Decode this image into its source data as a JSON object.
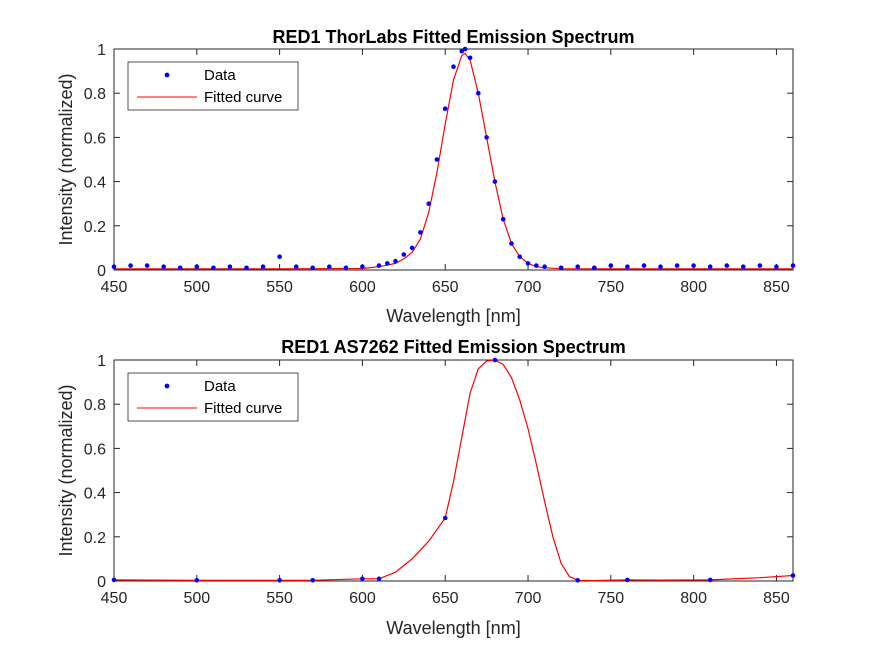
{
  "chart_data": [
    {
      "type": "line",
      "title": "RED1 ThorLabs Fitted Emission Spectrum",
      "xlabel": "Wavelength [nm]",
      "ylabel": "Intensity (normalized)",
      "xlim": [
        450,
        860
      ],
      "ylim": [
        0,
        1
      ],
      "xticks": [
        450,
        500,
        550,
        600,
        650,
        700,
        750,
        800,
        850
      ],
      "yticks": [
        0,
        0.2,
        0.4,
        0.6,
        0.8,
        1
      ],
      "ytick_labels": [
        "0",
        "0.2",
        "0.4",
        "0.6",
        "0.8",
        "1"
      ],
      "grid": false,
      "legend": {
        "position": "top-left",
        "entries": [
          "Data",
          "Fitted curve"
        ]
      },
      "series": [
        {
          "name": "Data",
          "style": "markers",
          "color": "#0000ff",
          "note": "dense measured samples; approximated here by key points read from the plot",
          "x": [
            450,
            460,
            470,
            480,
            490,
            500,
            510,
            520,
            530,
            540,
            550,
            560,
            570,
            580,
            590,
            600,
            610,
            615,
            620,
            625,
            630,
            635,
            640,
            645,
            650,
            655,
            660,
            662,
            665,
            670,
            675,
            680,
            685,
            690,
            695,
            700,
            705,
            710,
            720,
            730,
            740,
            750,
            760,
            770,
            780,
            790,
            800,
            810,
            820,
            830,
            840,
            850,
            860
          ],
          "y": [
            0.015,
            0.02,
            0.02,
            0.015,
            0.01,
            0.015,
            0.01,
            0.015,
            0.01,
            0.015,
            0.06,
            0.015,
            0.01,
            0.015,
            0.01,
            0.015,
            0.02,
            0.03,
            0.04,
            0.07,
            0.1,
            0.17,
            0.3,
            0.5,
            0.73,
            0.92,
            0.99,
            1.0,
            0.96,
            0.8,
            0.6,
            0.4,
            0.23,
            0.12,
            0.06,
            0.03,
            0.02,
            0.015,
            0.01,
            0.015,
            0.01,
            0.02,
            0.015,
            0.02,
            0.015,
            0.02,
            0.02,
            0.015,
            0.02,
            0.015,
            0.02,
            0.015,
            0.02
          ]
        },
        {
          "name": "Fitted curve",
          "style": "line",
          "color": "#ff0000",
          "x": [
            450,
            500,
            550,
            600,
            610,
            620,
            625,
            630,
            635,
            640,
            645,
            650,
            655,
            660,
            662,
            665,
            670,
            675,
            680,
            685,
            690,
            695,
            700,
            705,
            710,
            720,
            750,
            800,
            860
          ],
          "y": [
            0.005,
            0.005,
            0.005,
            0.007,
            0.015,
            0.03,
            0.05,
            0.08,
            0.14,
            0.26,
            0.44,
            0.66,
            0.86,
            0.97,
            0.98,
            0.95,
            0.8,
            0.6,
            0.4,
            0.23,
            0.12,
            0.06,
            0.03,
            0.015,
            0.01,
            0.006,
            0.005,
            0.005,
            0.005
          ]
        }
      ]
    },
    {
      "type": "line",
      "title": "RED1 AS7262 Fitted Emission Spectrum",
      "xlabel": "Wavelength [nm]",
      "ylabel": "Intensity (normalized)",
      "xlim": [
        450,
        860
      ],
      "ylim": [
        0,
        1
      ],
      "xticks": [
        450,
        500,
        550,
        600,
        650,
        700,
        750,
        800,
        850
      ],
      "yticks": [
        0,
        0.2,
        0.4,
        0.6,
        0.8,
        1
      ],
      "ytick_labels": [
        "0",
        "0.2",
        "0.4",
        "0.6",
        "0.8",
        "1"
      ],
      "grid": false,
      "legend": {
        "position": "top-left",
        "entries": [
          "Data",
          "Fitted curve"
        ]
      },
      "series": [
        {
          "name": "Data",
          "style": "markers",
          "color": "#0000ff",
          "x": [
            450,
            500,
            550,
            570,
            600,
            610,
            650,
            680,
            730,
            760,
            810,
            860
          ],
          "y": [
            0.005,
            0.003,
            0.003,
            0.003,
            0.01,
            0.01,
            0.285,
            1.0,
            0.003,
            0.005,
            0.005,
            0.025
          ]
        },
        {
          "name": "Fitted curve",
          "style": "line",
          "color": "#ff0000",
          "x": [
            450,
            500,
            550,
            570,
            600,
            610,
            620,
            630,
            640,
            650,
            655,
            660,
            665,
            670,
            675,
            680,
            685,
            690,
            695,
            700,
            705,
            710,
            715,
            720,
            725,
            730,
            740,
            760,
            780,
            810,
            840,
            860
          ],
          "y": [
            0.005,
            0.003,
            0.003,
            0.003,
            0.01,
            0.01,
            0.04,
            0.1,
            0.18,
            0.285,
            0.45,
            0.65,
            0.85,
            0.96,
            0.995,
            1.0,
            0.98,
            0.92,
            0.82,
            0.69,
            0.53,
            0.36,
            0.2,
            0.08,
            0.02,
            0.003,
            0.002,
            0.005,
            0.004,
            0.005,
            0.015,
            0.025
          ]
        }
      ]
    }
  ]
}
